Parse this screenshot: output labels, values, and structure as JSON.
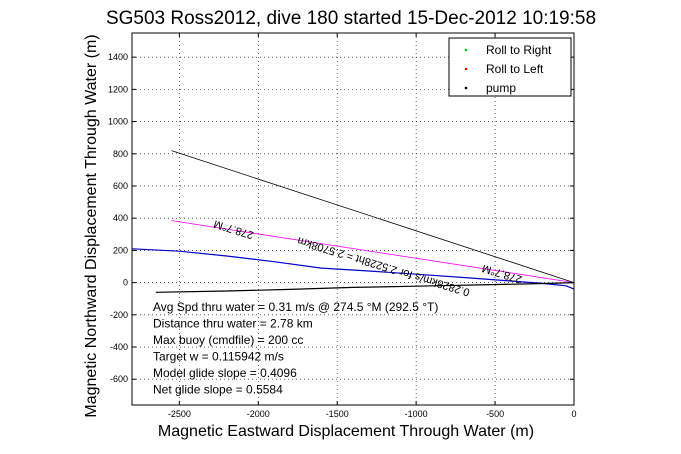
{
  "chart_data": {
    "type": "line",
    "title": "SG503 Ross2012, dive 180 started 15-Dec-2012 10:19:58",
    "xlabel": "Magnetic Eastward Displacement Through Water (m)",
    "ylabel": "Magnetic Northward Displacement Through Water (m)",
    "xlim": [
      -2800,
      0
    ],
    "ylim": [
      -760,
      1550
    ],
    "grid": true,
    "legend_position": "top-right",
    "xticks": [
      -2500,
      -2000,
      -1500,
      -1000,
      -500,
      0
    ],
    "xtick_labels": [
      "-2500",
      "-2000",
      "-1500",
      "-1000",
      "-500",
      "0"
    ],
    "yticks": [
      -600,
      -400,
      -200,
      0,
      200,
      400,
      600,
      800,
      1000,
      1200,
      1400
    ],
    "ytick_labels": [
      "-600",
      "-400",
      "-200",
      "0",
      "200",
      "400",
      "600",
      "800",
      "1000",
      "1200",
      "1400"
    ],
    "legend": [
      {
        "label": "Roll to Right",
        "color": "#00c000"
      },
      {
        "label": "Roll to Left",
        "color": "#ff0000"
      },
      {
        "label": "pump",
        "color": "#000000"
      }
    ],
    "series": [
      {
        "kind": "line",
        "color": "#000000",
        "x": [
          -2550,
          0
        ],
        "y": [
          820,
          0
        ]
      },
      {
        "kind": "line",
        "color": "#ff00ff",
        "x": [
          -2550,
          0
        ],
        "y": [
          385,
          0
        ]
      },
      {
        "kind": "track",
        "color": "#0000cc",
        "x": [
          -2800,
          -2500,
          -2200,
          -1900,
          -1600,
          -1300,
          -1000,
          -700,
          -400,
          -200,
          -50,
          0
        ],
        "y": [
          210,
          195,
          165,
          130,
          90,
          72,
          52,
          32,
          10,
          -5,
          -20,
          -40
        ]
      },
      {
        "kind": "track",
        "color": "#000000",
        "x": [
          -2650,
          -2200,
          -1800,
          -1400,
          -1000,
          -600,
          -300,
          -100,
          0
        ],
        "y": [
          -60,
          -52,
          -42,
          -30,
          -22,
          -14,
          -8,
          -3,
          0
        ]
      }
    ],
    "plot_labels": [
      {
        "text": "278.7°M",
        "x": -2150,
        "y": 350
      },
      {
        "text": "0.2828km/s for 2.5228ht = 2.5708km",
        "x": -1200,
        "y": 120
      },
      {
        "text": "278.7°M",
        "x": -450,
        "y": 75
      }
    ],
    "annotations": [
      "Avg Spd thru water =  0.31 m/s @ 274.5   °M (292.5 °T)",
      "Distance thru water =  2.78 km",
      "Max buoy (cmdfile) = 200 cc",
      "Target w = 0.115942 m/s",
      "Model glide slope = 0.4096",
      "Net glide slope = 0.5584"
    ]
  }
}
